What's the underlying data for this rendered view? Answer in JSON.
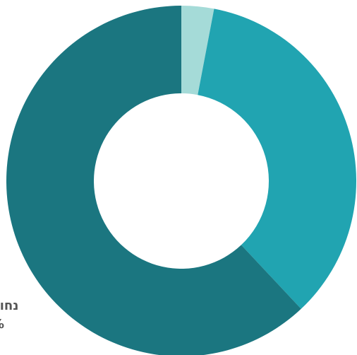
{
  "chart_data": {
    "type": "pie",
    "donut": true,
    "categories": [
      "",
      "",
      ""
    ],
    "values": [
      3,
      35,
      62
    ],
    "colors": [
      "#a5dbd8",
      "#21a4b1",
      "#1b7680"
    ],
    "title": "",
    "xlabel": "",
    "ylabel": "",
    "legend": "none",
    "grid": false,
    "labels": [
      {
        "text": "נחוצ",
        "value_text": "%"
      }
    ]
  }
}
